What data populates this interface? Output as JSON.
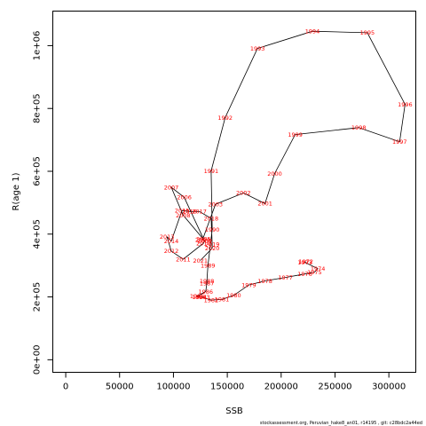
{
  "chart_data": {
    "type": "line",
    "xlabel": "SSB",
    "ylabel": "R(age 1)",
    "xlim": [
      -12000,
      325000
    ],
    "ylim": [
      -40000,
      1110000
    ],
    "x_ticks": [
      0,
      50000,
      100000,
      150000,
      200000,
      250000,
      300000
    ],
    "x_tick_labels": [
      "0",
      "50000",
      "100000",
      "150000",
      "200000",
      "250000",
      "300000"
    ],
    "y_ticks": [
      0,
      200000,
      400000,
      600000,
      800000,
      1000000
    ],
    "y_tick_labels": [
      "0e+00",
      "2e+05",
      "4e+05",
      "6e+05",
      "8e+05",
      "1e+06"
    ],
    "grid": false,
    "line_color": "#000000",
    "label_color": "#ff0000",
    "points": [
      {
        "year": "1972",
        "x": 223000,
        "y": 312000
      },
      {
        "year": "1973",
        "x": 222000,
        "y": 310000
      },
      {
        "year": "1974",
        "x": 234000,
        "y": 290000
      },
      {
        "year": "1975",
        "x": 231000,
        "y": 279000
      },
      {
        "year": "1976",
        "x": 222000,
        "y": 273000
      },
      {
        "year": "1977",
        "x": 204000,
        "y": 262000
      },
      {
        "year": "1978",
        "x": 185000,
        "y": 251000
      },
      {
        "year": "1979",
        "x": 170000,
        "y": 238000
      },
      {
        "year": "1980",
        "x": 156000,
        "y": 205000
      },
      {
        "year": "1981",
        "x": 145000,
        "y": 192000
      },
      {
        "year": "1982",
        "x": 135000,
        "y": 190000
      },
      {
        "year": "1983",
        "x": 127000,
        "y": 199000
      },
      {
        "year": "1984",
        "x": 124000,
        "y": 200000
      },
      {
        "year": "1985",
        "x": 122000,
        "y": 202000
      },
      {
        "year": "1986",
        "x": 130000,
        "y": 217000
      },
      {
        "year": "1987",
        "x": 131000,
        "y": 244000
      },
      {
        "year": "1988",
        "x": 131000,
        "y": 250000
      },
      {
        "year": "1989",
        "x": 132000,
        "y": 300000
      },
      {
        "year": "1990",
        "x": 136000,
        "y": 414000
      },
      {
        "year": "1991",
        "x": 135000,
        "y": 601000
      },
      {
        "year": "1992",
        "x": 148000,
        "y": 771000
      },
      {
        "year": "1993",
        "x": 178000,
        "y": 991000
      },
      {
        "year": "1994",
        "x": 229000,
        "y": 1046000
      },
      {
        "year": "1995",
        "x": 280000,
        "y": 1041000
      },
      {
        "year": "1996",
        "x": 315000,
        "y": 813000
      },
      {
        "year": "1997",
        "x": 310000,
        "y": 694000
      },
      {
        "year": "1998",
        "x": 272000,
        "y": 739000
      },
      {
        "year": "1999",
        "x": 213000,
        "y": 717000
      },
      {
        "year": "2000",
        "x": 194000,
        "y": 593000
      },
      {
        "year": "2001",
        "x": 185000,
        "y": 497000
      },
      {
        "year": "2002",
        "x": 165000,
        "y": 531000
      },
      {
        "year": "2003",
        "x": 139000,
        "y": 495000
      },
      {
        "year": "2004",
        "x": 127000,
        "y": 382000
      },
      {
        "year": "2005",
        "x": 128000,
        "y": 384000
      },
      {
        "year": "2006",
        "x": 110000,
        "y": 517000
      },
      {
        "year": "2007",
        "x": 98000,
        "y": 549000
      },
      {
        "year": "2008",
        "x": 109000,
        "y": 460000
      },
      {
        "year": "2009",
        "x": 129000,
        "y": 379000
      },
      {
        "year": "2010",
        "x": 128000,
        "y": 371000
      },
      {
        "year": "2011",
        "x": 109000,
        "y": 320000
      },
      {
        "year": "2012",
        "x": 98000,
        "y": 346000
      },
      {
        "year": "2013",
        "x": 94000,
        "y": 392000
      },
      {
        "year": "2014",
        "x": 98000,
        "y": 378000
      },
      {
        "year": "2015",
        "x": 108000,
        "y": 475000
      },
      {
        "year": "2016",
        "x": 115000,
        "y": 472000
      },
      {
        "year": "2017",
        "x": 124000,
        "y": 472000
      },
      {
        "year": "2018",
        "x": 135000,
        "y": 450000
      },
      {
        "year": "2019",
        "x": 136000,
        "y": 368000
      },
      {
        "year": "2020",
        "x": 136000,
        "y": 355000
      },
      {
        "year": "2021",
        "x": 125000,
        "y": 316000
      }
    ]
  },
  "footer": {
    "attribution": "stockassessment.org,  Peruvian_hake8_an01,  r14195 ,  git:  c28bdc2a44ed"
  }
}
